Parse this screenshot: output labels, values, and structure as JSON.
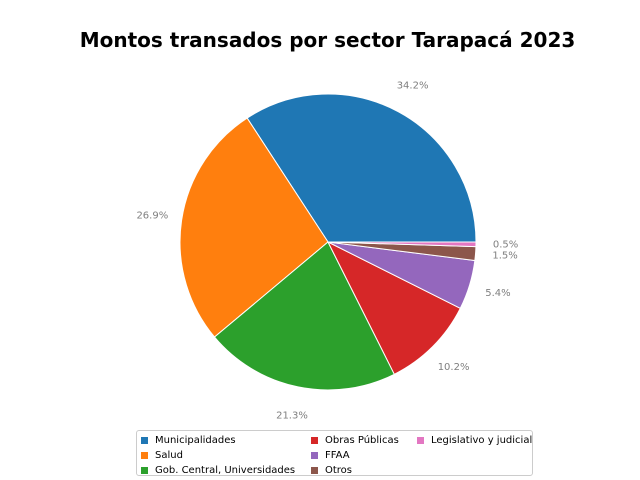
{
  "chart_data": {
    "type": "pie",
    "title": "Montos transados por sector Tarapacá 2023",
    "categories": [
      "Municipalidades",
      "Salud",
      "Gob. Central, Universidades",
      "Obras Públicas",
      "FFAA",
      "Otros",
      "Legislativo y judicial"
    ],
    "values": [
      34.2,
      26.9,
      21.3,
      10.2,
      5.4,
      1.5,
      0.5
    ],
    "value_labels": [
      "34.2%",
      "26.9%",
      "21.3%",
      "10.2%",
      "5.4%",
      "1.5%",
      "0.5%"
    ],
    "colors": [
      "#1f77b4",
      "#ff7f0e",
      "#2ca02c",
      "#d62728",
      "#9467bd",
      "#8c564b",
      "#e377c2"
    ],
    "start_angle_deg": 0,
    "direction": "counterclockwise",
    "legend_position": "bottom"
  }
}
